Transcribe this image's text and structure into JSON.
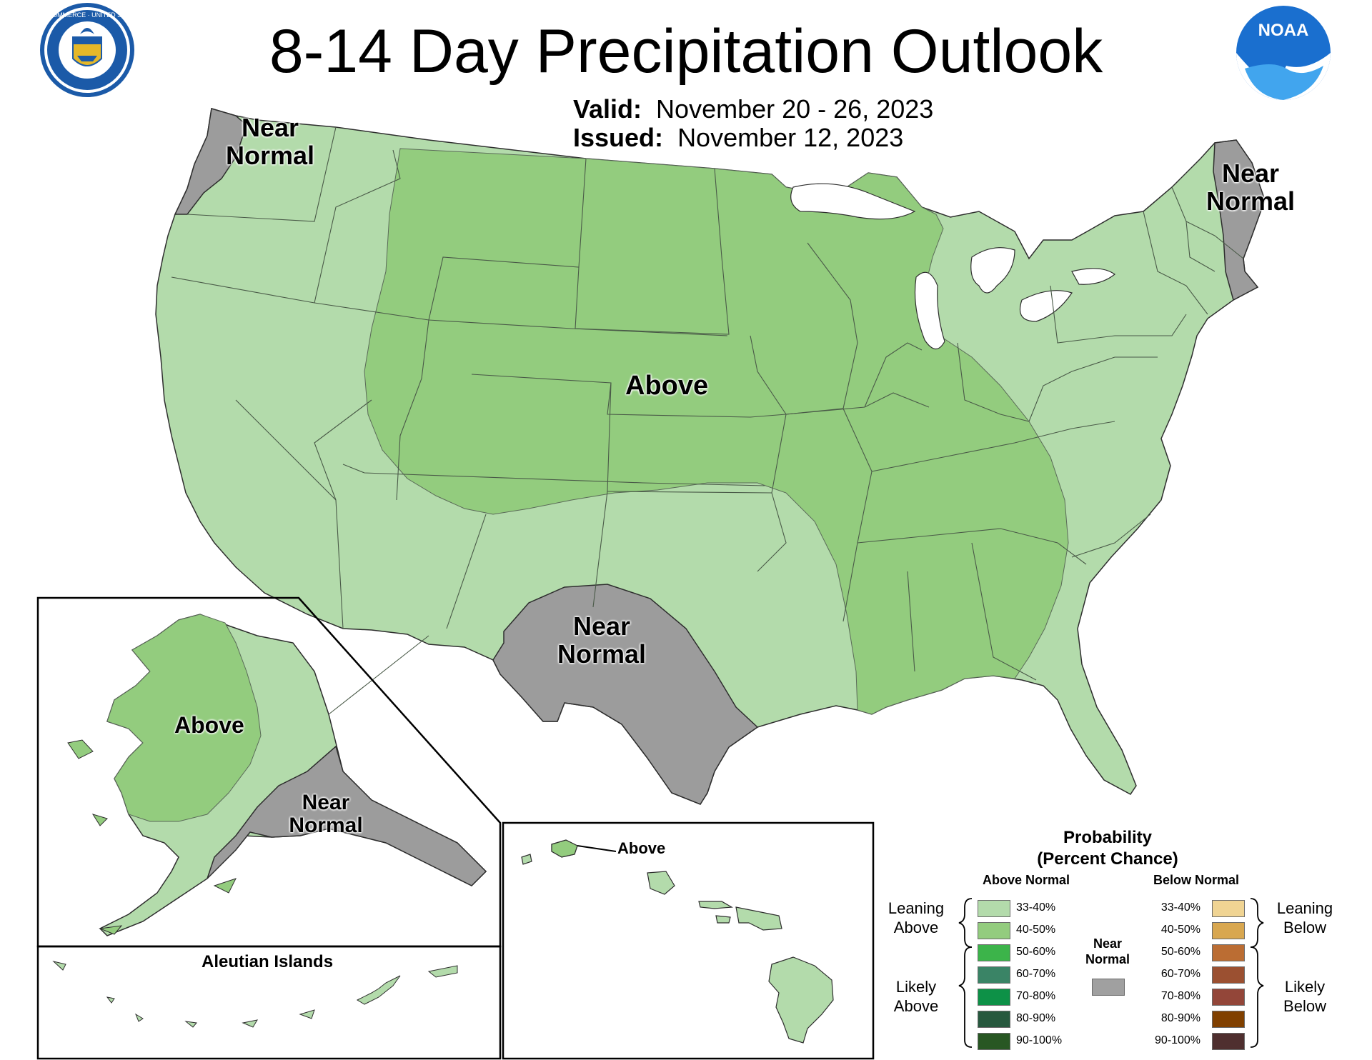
{
  "header": {
    "title": "8-14 Day Precipitation Outlook",
    "valid_label": "Valid:",
    "valid_value": "November 20 - 26, 2023",
    "issued_label": "Issued:",
    "issued_value": "November 12, 2023"
  },
  "logos": {
    "commerce_seal_text": "DEPARTMENT OF COMMERCE · UNITED STATES OF AMERICA",
    "noaa_text": "NOAA"
  },
  "map_labels": {
    "conus_above": "Above",
    "northwest_near": [
      "Near",
      "Normal"
    ],
    "northeast_near": [
      "Near",
      "Normal"
    ],
    "texas_near": [
      "Near",
      "Normal"
    ],
    "alaska_above": "Above",
    "alaska_near": [
      "Near",
      "Normal"
    ],
    "hawaii_above": "Above",
    "aleutian_title": "Aleutian Islands"
  },
  "colors": {
    "leaning_above_33_40": "#b3dbab",
    "leaning_above_40_50": "#93cc7e",
    "near_normal": "#9c9c9c",
    "state_border": "#4a5a48",
    "water": "#ffffff"
  },
  "legend": {
    "title_line1": "Probability",
    "title_line2": "(Percent Chance)",
    "above_header": "Above Normal",
    "below_header": "Below Normal",
    "near_header_line1": "Near",
    "near_header_line2": "Normal",
    "leaning_above": [
      "Leaning",
      "Above"
    ],
    "likely_above": [
      "Likely",
      "Above"
    ],
    "leaning_below": [
      "Leaning",
      "Below"
    ],
    "likely_below": [
      "Likely",
      "Below"
    ],
    "above": [
      {
        "label": "33-40%",
        "color": "#b3dbab"
      },
      {
        "label": "40-50%",
        "color": "#93cc7e"
      },
      {
        "label": "50-60%",
        "color": "#3cb44a"
      },
      {
        "label": "60-70%",
        "color": "#3a8466"
      },
      {
        "label": "70-80%",
        "color": "#0d9147"
      },
      {
        "label": "80-90%",
        "color": "#27593e"
      },
      {
        "label": "90-100%",
        "color": "#285723"
      }
    ],
    "below": [
      {
        "label": "33-40%",
        "color": "#f0d493"
      },
      {
        "label": "40-50%",
        "color": "#d8a750"
      },
      {
        "label": "50-60%",
        "color": "#bb6d33"
      },
      {
        "label": "60-70%",
        "color": "#9b5031"
      },
      {
        "label": "70-80%",
        "color": "#934639"
      },
      {
        "label": "80-90%",
        "color": "#804000"
      },
      {
        "label": "90-100%",
        "color": "#4f2f2f"
      }
    ],
    "near_color": "#a0a0a0"
  }
}
